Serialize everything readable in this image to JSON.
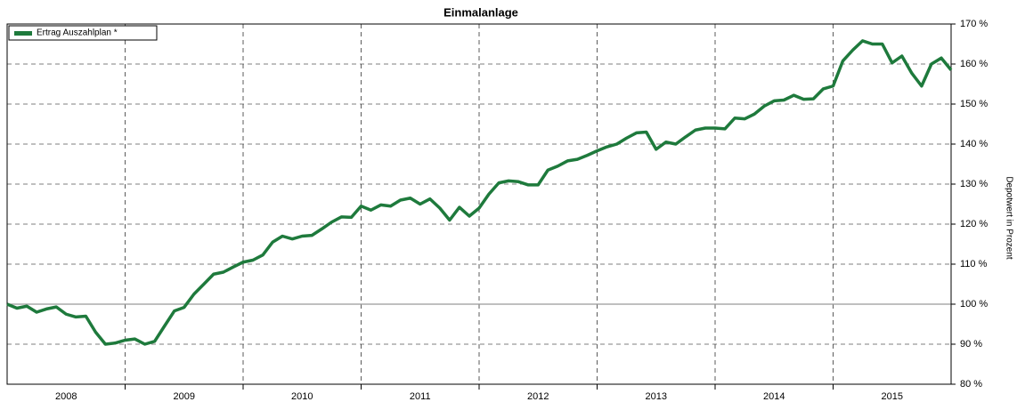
{
  "chart_data": {
    "type": "line",
    "title": "Einmalanlage",
    "y_label": "Depotwert in Prozent",
    "series": [
      {
        "name": "Ertrag Auszahlplan  *",
        "color": "#1e7a3c",
        "values": [
          100,
          99,
          99.5,
          98,
          98.8,
          99.3,
          97.5,
          96.8,
          97,
          93,
          90,
          90.3,
          91,
          91.3,
          90,
          90.7,
          94.5,
          98.3,
          99.2,
          102.5,
          105,
          107.5,
          108,
          109.3,
          110.5,
          111,
          112.3,
          115.5,
          117,
          116.3,
          117,
          117.2,
          118.8,
          120.5,
          121.8,
          121.7,
          124.5,
          123.5,
          124.8,
          124.5,
          126,
          126.5,
          125,
          126.3,
          124,
          121,
          124.2,
          122,
          124,
          127.5,
          130.3,
          130.8,
          130.6,
          129.8,
          129.8,
          133.5,
          134.5,
          135.8,
          136.2,
          137.2,
          138.3,
          139.3,
          140,
          141.5,
          142.8,
          143,
          138.7,
          140.5,
          140,
          141.8,
          143.5,
          144,
          144,
          143.8,
          146.5,
          146.3,
          147.5,
          149.5,
          150.8,
          151,
          152.2,
          151.2,
          151.3,
          153.8,
          154.5,
          160.8,
          163.5,
          165.8,
          165,
          165,
          160.3,
          162,
          157.7,
          154.5,
          160,
          161.5,
          158.5
        ]
      }
    ],
    "x": [
      2008,
      2008.083,
      2008.167,
      2008.25,
      2008.333,
      2008.417,
      2008.5,
      2008.583,
      2008.667,
      2008.75,
      2008.833,
      2008.917,
      2009,
      2009.083,
      2009.167,
      2009.25,
      2009.333,
      2009.417,
      2009.5,
      2009.583,
      2009.667,
      2009.75,
      2009.833,
      2009.917,
      2010,
      2010.083,
      2010.167,
      2010.25,
      2010.333,
      2010.417,
      2010.5,
      2010.583,
      2010.667,
      2010.75,
      2010.833,
      2010.917,
      2011,
      2011.083,
      2011.167,
      2011.25,
      2011.333,
      2011.417,
      2011.5,
      2011.583,
      2011.667,
      2011.75,
      2011.833,
      2011.917,
      2012,
      2012.083,
      2012.167,
      2012.25,
      2012.333,
      2012.417,
      2012.5,
      2012.583,
      2012.667,
      2012.75,
      2012.833,
      2012.917,
      2013,
      2013.083,
      2013.167,
      2013.25,
      2013.333,
      2013.417,
      2013.5,
      2013.583,
      2013.667,
      2013.75,
      2013.833,
      2013.917,
      2014,
      2014.083,
      2014.167,
      2014.25,
      2014.333,
      2014.417,
      2014.5,
      2014.583,
      2014.667,
      2014.75,
      2014.833,
      2014.917,
      2015,
      2015.083,
      2015.167,
      2015.25,
      2015.333,
      2015.417,
      2015.5,
      2015.583,
      2015.667,
      2015.75,
      2015.833,
      2015.917,
      2016
    ],
    "xlim": [
      2008,
      2016
    ],
    "xticks": [
      {
        "value": 2008.5,
        "label": "2008"
      },
      {
        "value": 2009.5,
        "label": "2009"
      },
      {
        "value": 2010.5,
        "label": "2010"
      },
      {
        "value": 2011.5,
        "label": "2011"
      },
      {
        "value": 2012.5,
        "label": "2012"
      },
      {
        "value": 2013.5,
        "label": "2013"
      },
      {
        "value": 2014.5,
        "label": "2014"
      },
      {
        "value": 2015.5,
        "label": "2015"
      }
    ],
    "xgrid_lines": [
      2009,
      2010,
      2011,
      2012,
      2013,
      2014,
      2015
    ],
    "ylim": [
      80,
      170
    ],
    "yticks": [
      {
        "value": 80,
        "label": "80 %"
      },
      {
        "value": 90,
        "label": "90 %"
      },
      {
        "value": 100,
        "label": "100 %"
      },
      {
        "value": 110,
        "label": "110 %"
      },
      {
        "value": 120,
        "label": "120 %"
      },
      {
        "value": 130,
        "label": "130 %"
      },
      {
        "value": 140,
        "label": "140 %"
      },
      {
        "value": 150,
        "label": "150 %"
      },
      {
        "value": 160,
        "label": "160 %"
      },
      {
        "value": 170,
        "label": "170 %"
      }
    ],
    "reference_line": 100,
    "grid": true,
    "legend": "top-left"
  }
}
